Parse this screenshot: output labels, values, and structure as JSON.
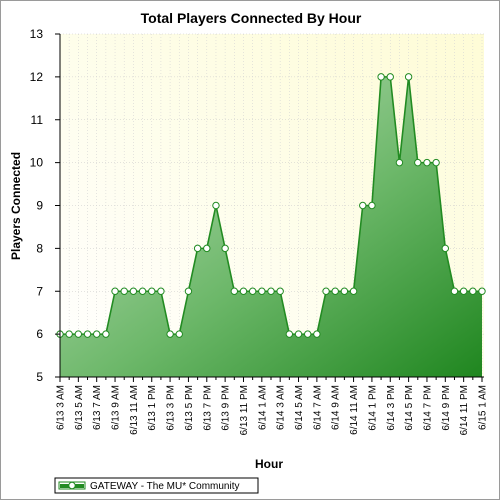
{
  "chart_data": {
    "type": "area",
    "title": "Total Players Connected By Hour",
    "xlabel": "Hour",
    "ylabel": "Players Connected",
    "ylim": [
      5,
      13
    ],
    "yticks": [
      5,
      6,
      7,
      8,
      9,
      10,
      11,
      12,
      13
    ],
    "grid": true,
    "legend": "bottom-left",
    "x": [
      "6/13 3 AM",
      "6/13 4 AM",
      "6/13 5 AM",
      "6/13 6 AM",
      "6/13 7 AM",
      "6/13 8 AM",
      "6/13 9 AM",
      "6/13 10 AM",
      "6/13 11 AM",
      "6/13 12 PM",
      "6/13 1 PM",
      "6/13 2 PM",
      "6/13 3 PM",
      "6/13 4 PM",
      "6/13 5 PM",
      "6/13 6 PM",
      "6/13 7 PM",
      "6/13 8 PM",
      "6/13 9 PM",
      "6/13 10 PM",
      "6/13 11 PM",
      "6/14 12 AM",
      "6/14 1 AM",
      "6/14 2 AM",
      "6/14 3 AM",
      "6/14 4 AM",
      "6/14 5 AM",
      "6/14 6 AM",
      "6/14 7 AM",
      "6/14 8 AM",
      "6/14 9 AM",
      "6/14 10 AM",
      "6/14 11 AM",
      "6/14 12 PM",
      "6/14 1 PM",
      "6/14 2 PM",
      "6/14 3 PM",
      "6/14 4 PM",
      "6/14 5 PM",
      "6/14 6 PM",
      "6/14 7 PM",
      "6/14 8 PM",
      "6/14 9 PM",
      "6/14 10 PM",
      "6/14 11 PM",
      "6/15 12 AM",
      "6/15 1 AM"
    ],
    "tick_labels": [
      "6/13 3 AM",
      "6/13 5 AM",
      "6/13 7 AM",
      "6/13 9 AM",
      "6/13 11 AM",
      "6/13 1 PM",
      "6/13 3 PM",
      "6/13 5 PM",
      "6/13 7 PM",
      "6/13 9 PM",
      "6/13 11 PM",
      "6/14 1 AM",
      "6/14 3 AM",
      "6/14 5 AM",
      "6/14 7 AM",
      "6/14 9 AM",
      "6/14 11 AM",
      "6/14 1 PM",
      "6/14 3 PM",
      "6/14 5 PM",
      "6/14 7 PM",
      "6/14 9 PM",
      "6/14 11 PM",
      "6/15 1 AM"
    ],
    "series": [
      {
        "name": "GATEWAY - The MU* Community",
        "color": "#228B22",
        "values": [
          6,
          6,
          6,
          6,
          6,
          6,
          7,
          7,
          7,
          7,
          7,
          7,
          6,
          6,
          7,
          8,
          8,
          9,
          8,
          7,
          7,
          7,
          7,
          7,
          7,
          6,
          6,
          6,
          6,
          7,
          7,
          7,
          7,
          9,
          9,
          12,
          12,
          10,
          12,
          10,
          10,
          10,
          8,
          7,
          7,
          7,
          7
        ]
      }
    ]
  }
}
